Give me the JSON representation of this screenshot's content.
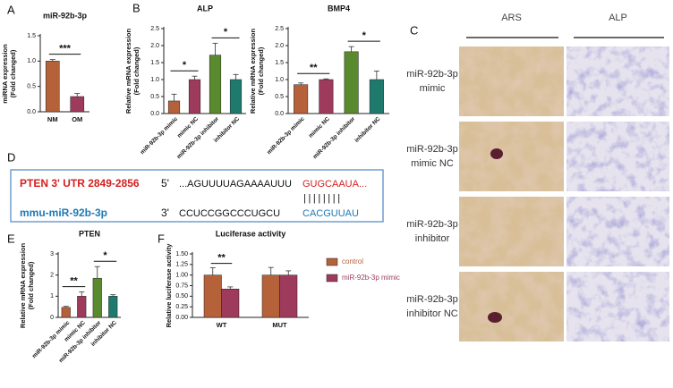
{
  "panels": [
    "A",
    "B",
    "C",
    "D",
    "E",
    "F"
  ],
  "chart_data": [
    {
      "type": "bar",
      "title": "miR-92b-3p",
      "ylabel": [
        "miRNA expression",
        "(Fold changed)"
      ],
      "categories": [
        "NM",
        "OM"
      ],
      "values": [
        1.0,
        0.3
      ],
      "errors": [
        0.03,
        0.06
      ],
      "colors": [
        "#b5613a",
        "#9e3b5c"
      ],
      "ylim": [
        0,
        1.5
      ],
      "yticks": [
        {
          "value": 0,
          "label": "0.0"
        },
        {
          "value": 0.5,
          "label": "0.5"
        },
        {
          "value": 1,
          "label": "1.0"
        },
        {
          "value": 1.5,
          "label": "1.5"
        }
      ],
      "significance": [
        "***"
      ]
    },
    {
      "type": "bar",
      "title": "ALP",
      "ylabel": [
        "Relative mRNA expression",
        "(Fold changed)"
      ],
      "categories": [
        "miR-92b-3p mimic",
        "mimic NC",
        "miR-92b-3p inhibitor",
        "inhibitor NC"
      ],
      "values": [
        0.37,
        1.0,
        1.72,
        1.0
      ],
      "errors": [
        0.2,
        0.1,
        0.35,
        0.15
      ],
      "colors": [
        "#b5613a",
        "#9e3b5c",
        "#5a8a2e",
        "#1f7a6e"
      ],
      "ylim": [
        0,
        2.5
      ],
      "yticks": [
        {
          "value": 0,
          "label": "0.0"
        },
        {
          "value": 0.5,
          "label": "0.5"
        },
        {
          "value": 1,
          "label": "1.0"
        },
        {
          "value": 1.5,
          "label": "1.5"
        },
        {
          "value": 2,
          "label": "2.0"
        },
        {
          "value": 2.5,
          "label": "2.5"
        }
      ],
      "significance": [
        "*",
        "*"
      ]
    },
    {
      "type": "bar",
      "title": "BMP4",
      "ylabel": [
        "Relative mRNA expression",
        "(Fold changed)"
      ],
      "categories": [
        "miR-92b-3p mimic",
        "mimic NC",
        "miR-92b-3p inhibitor",
        "inhibitor NC"
      ],
      "values": [
        0.85,
        1.0,
        1.82,
        1.0
      ],
      "errors": [
        0.05,
        0.02,
        0.15,
        0.25
      ],
      "colors": [
        "#b5613a",
        "#9e3b5c",
        "#5a8a2e",
        "#1f7a6e"
      ],
      "ylim": [
        0,
        2.5
      ],
      "yticks": [
        {
          "value": 0,
          "label": "0.0"
        },
        {
          "value": 0.5,
          "label": "0.5"
        },
        {
          "value": 1,
          "label": "1.0"
        },
        {
          "value": 1.5,
          "label": "1.5"
        },
        {
          "value": 2,
          "label": "2.0"
        },
        {
          "value": 2.5,
          "label": "2.5"
        }
      ],
      "significance": [
        "**",
        "*"
      ]
    },
    {
      "type": "bar",
      "title": "PTEN",
      "ylabel": [
        "Relative mRNA expression",
        "(Fold changed)"
      ],
      "categories": [
        "miR-92b-3p mimic",
        "mimic NC",
        "miR-92b-3p inhibitor",
        "inhibitor NC"
      ],
      "values": [
        0.47,
        1.0,
        1.85,
        1.0
      ],
      "errors": [
        0.05,
        0.2,
        0.55,
        0.07
      ],
      "colors": [
        "#b5613a",
        "#9e3b5c",
        "#5a8a2e",
        "#1f7a6e"
      ],
      "ylim": [
        0,
        3
      ],
      "yticks": [
        0,
        1,
        2,
        3
      ],
      "significance": [
        "**",
        "*"
      ]
    },
    {
      "type": "grouped-bar",
      "title": "Luciferase activity",
      "ylabel": [
        "Relative luciferase activity"
      ],
      "categories": [
        "WT",
        "MUT"
      ],
      "series": [
        {
          "name": "control",
          "color": "#b5613a",
          "values": [
            1.0,
            1.0
          ],
          "errors": [
            0.17,
            0.18
          ]
        },
        {
          "name": "miR-92b-3p mimic",
          "color": "#9e3b5c",
          "values": [
            0.67,
            1.0
          ],
          "errors": [
            0.05,
            0.1
          ]
        }
      ],
      "ylim": [
        0,
        1.5
      ],
      "yticks": [
        {
          "value": 0,
          "label": "0.00"
        },
        {
          "value": 0.25,
          "label": "0.25"
        },
        {
          "value": 0.5,
          "label": "0.50"
        },
        {
          "value": 0.75,
          "label": "0.75"
        },
        {
          "value": 1,
          "label": "1.00"
        },
        {
          "value": 1.25,
          "label": "1.25"
        },
        {
          "value": 1.5,
          "label": "1.50"
        }
      ],
      "significance": [
        "**"
      ]
    }
  ],
  "sequence": {
    "target_label": "PTEN 3' UTR 2849-2856",
    "target_end": "5'",
    "target_seq": "...AGUUUUAGAAAAUUU",
    "target_seed": "GUGCAAUA...",
    "pairing": "||||||||",
    "mirna_label": "mmu-miR-92b-3p",
    "mirna_end": "3'",
    "mirna_seq": "CCUCCGGCCCUGCU",
    "mirna_seed": "CACGUUAU"
  },
  "image_panel": {
    "columns": [
      "ARS",
      "ALP"
    ],
    "rows": [
      [
        "miR-92b-3p",
        "mimic"
      ],
      [
        "miR-92b-3p",
        "mimic NC"
      ],
      [
        "miR-92b-3p",
        "inhibitor"
      ],
      [
        "miR-92b-3p",
        "inhibitor NC"
      ]
    ]
  }
}
